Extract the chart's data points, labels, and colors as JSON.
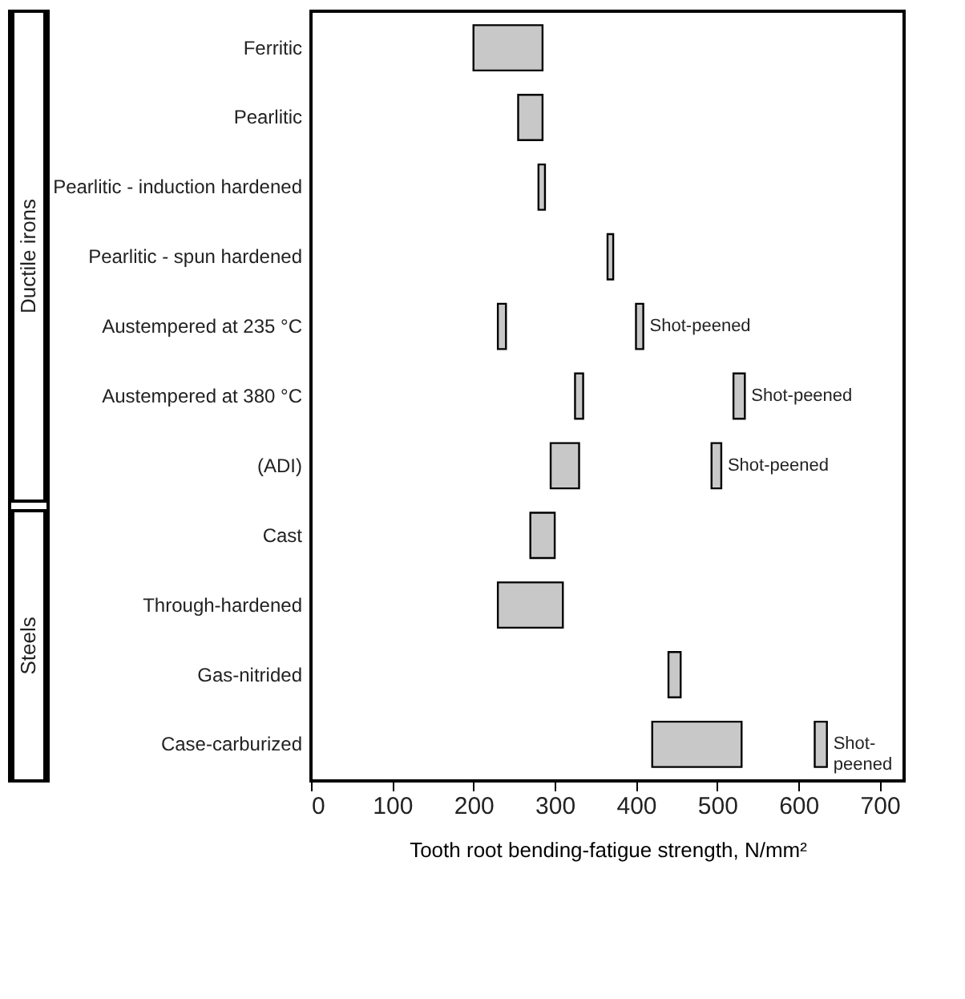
{
  "chart_data": {
    "type": "bar",
    "orientation": "horizontal",
    "xlabel": "Tooth root bending-fatigue strength, N/mm²",
    "categories": [
      "Ferritic",
      "Pearlitic",
      "Pearlitic - induction hardened",
      "Pearlitic - spun hardened",
      "Austempered at 235 °C",
      "Austempered at 380 °C",
      "(ADI)",
      "Cast",
      "Through-hardened",
      "Gas-nitrided",
      "Case-carburized"
    ],
    "series": [
      {
        "color": "#c8c8c8",
        "base": [
          200,
          255,
          280,
          365,
          230,
          325,
          295,
          270,
          230,
          440,
          420
        ],
        "values": [
          85,
          30,
          8,
          7,
          10,
          10,
          35,
          30,
          80,
          15,
          110
        ]
      },
      {
        "name": "Shot-peened",
        "color": "#c8c8c8",
        "base": [
          null,
          null,
          null,
          null,
          400,
          520,
          493,
          null,
          null,
          null,
          620
        ],
        "values": [
          null,
          null,
          null,
          null,
          9,
          14,
          12,
          null,
          null,
          null,
          15
        ]
      }
    ],
    "xlim": [
      0,
      730
    ],
    "xticks": [
      0,
      100,
      200,
      300,
      400,
      500,
      600,
      700
    ],
    "grid": false,
    "annotations": [
      "Ductile irons",
      "Steels"
    ]
  }
}
